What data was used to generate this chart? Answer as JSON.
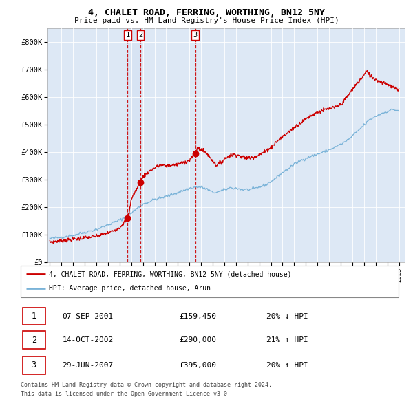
{
  "title": "4, CHALET ROAD, FERRING, WORTHING, BN12 5NY",
  "subtitle": "Price paid vs. HM Land Registry's House Price Index (HPI)",
  "legend_line1": "4, CHALET ROAD, FERRING, WORTHING, BN12 5NY (detached house)",
  "legend_line2": "HPI: Average price, detached house, Arun",
  "transactions": [
    {
      "num": 1,
      "date": "07-SEP-2001",
      "price": "£159,450",
      "change": "20% ↓ HPI",
      "year": 2001.69
    },
    {
      "num": 2,
      "date": "14-OCT-2002",
      "price": "£290,000",
      "change": "21% ↑ HPI",
      "year": 2002.79
    },
    {
      "num": 3,
      "date": "29-JUN-2007",
      "price": "£395,000",
      "change": "20% ↑ HPI",
      "year": 2007.49
    }
  ],
  "transaction_values": [
    159450,
    290000,
    395000
  ],
  "footer1": "Contains HM Land Registry data © Crown copyright and database right 2024.",
  "footer2": "This data is licensed under the Open Government Licence v3.0.",
  "hpi_color": "#7ab3d8",
  "price_color": "#cc0000",
  "marker_color": "#cc0000",
  "vline_color": "#cc0000",
  "bg_color": "#dde8f5",
  "grid_color": "#ffffff",
  "ylim": [
    0,
    850000
  ],
  "yticks": [
    0,
    100000,
    200000,
    300000,
    400000,
    500000,
    600000,
    700000,
    800000
  ],
  "ytick_labels": [
    "£0",
    "£100K",
    "£200K",
    "£300K",
    "£400K",
    "£500K",
    "£600K",
    "£700K",
    "£800K"
  ],
  "xlim_start": 1994.8,
  "xlim_end": 2025.5,
  "hpi_anchors": [
    [
      1995.0,
      85000
    ],
    [
      1996.0,
      90000
    ],
    [
      1997.0,
      97000
    ],
    [
      1998.0,
      108000
    ],
    [
      1999.0,
      118000
    ],
    [
      2000.0,
      135000
    ],
    [
      2001.0,
      152000
    ],
    [
      2001.5,
      162000
    ],
    [
      2002.0,
      178000
    ],
    [
      2002.5,
      195000
    ],
    [
      2003.0,
      210000
    ],
    [
      2003.5,
      218000
    ],
    [
      2004.0,
      228000
    ],
    [
      2004.5,
      232000
    ],
    [
      2005.0,
      238000
    ],
    [
      2005.5,
      245000
    ],
    [
      2006.0,
      252000
    ],
    [
      2006.5,
      260000
    ],
    [
      2007.0,
      268000
    ],
    [
      2007.5,
      272000
    ],
    [
      2008.0,
      272000
    ],
    [
      2008.5,
      265000
    ],
    [
      2009.0,
      252000
    ],
    [
      2009.5,
      255000
    ],
    [
      2010.0,
      262000
    ],
    [
      2010.5,
      270000
    ],
    [
      2011.0,
      268000
    ],
    [
      2011.5,
      263000
    ],
    [
      2012.0,
      263000
    ],
    [
      2012.5,
      265000
    ],
    [
      2013.0,
      272000
    ],
    [
      2013.5,
      280000
    ],
    [
      2014.0,
      292000
    ],
    [
      2014.5,
      308000
    ],
    [
      2015.0,
      325000
    ],
    [
      2015.5,
      340000
    ],
    [
      2016.0,
      355000
    ],
    [
      2016.5,
      368000
    ],
    [
      2017.0,
      378000
    ],
    [
      2017.5,
      385000
    ],
    [
      2018.0,
      392000
    ],
    [
      2018.5,
      400000
    ],
    [
      2019.0,
      408000
    ],
    [
      2019.5,
      418000
    ],
    [
      2020.0,
      428000
    ],
    [
      2020.5,
      440000
    ],
    [
      2021.0,
      458000
    ],
    [
      2021.5,
      478000
    ],
    [
      2022.0,
      498000
    ],
    [
      2022.5,
      518000
    ],
    [
      2023.0,
      530000
    ],
    [
      2023.5,
      540000
    ],
    [
      2024.0,
      548000
    ],
    [
      2024.5,
      555000
    ],
    [
      2025.0,
      550000
    ]
  ],
  "price_anchors": [
    [
      1995.0,
      72000
    ],
    [
      1996.0,
      78000
    ],
    [
      1997.0,
      82000
    ],
    [
      1998.0,
      88000
    ],
    [
      1999.0,
      93000
    ],
    [
      2000.0,
      105000
    ],
    [
      2001.0,
      125000
    ],
    [
      2001.69,
      159450
    ],
    [
      2001.8,
      175000
    ],
    [
      2001.9,
      200000
    ],
    [
      2002.0,
      230000
    ],
    [
      2002.4,
      260000
    ],
    [
      2002.79,
      290000
    ],
    [
      2003.0,
      310000
    ],
    [
      2003.5,
      328000
    ],
    [
      2004.0,
      342000
    ],
    [
      2004.5,
      352000
    ],
    [
      2005.0,
      350000
    ],
    [
      2005.5,
      352000
    ],
    [
      2006.0,
      356000
    ],
    [
      2006.5,
      362000
    ],
    [
      2007.0,
      370000
    ],
    [
      2007.49,
      395000
    ],
    [
      2007.7,
      415000
    ],
    [
      2008.0,
      408000
    ],
    [
      2008.5,
      395000
    ],
    [
      2009.0,
      368000
    ],
    [
      2009.3,
      352000
    ],
    [
      2009.7,
      362000
    ],
    [
      2010.0,
      375000
    ],
    [
      2010.5,
      388000
    ],
    [
      2011.0,
      392000
    ],
    [
      2011.5,
      382000
    ],
    [
      2012.0,
      378000
    ],
    [
      2012.5,
      382000
    ],
    [
      2013.0,
      390000
    ],
    [
      2013.5,
      402000
    ],
    [
      2014.0,
      418000
    ],
    [
      2014.5,
      438000
    ],
    [
      2015.0,
      455000
    ],
    [
      2015.5,
      472000
    ],
    [
      2016.0,
      490000
    ],
    [
      2016.5,
      505000
    ],
    [
      2017.0,
      520000
    ],
    [
      2017.5,
      535000
    ],
    [
      2018.0,
      545000
    ],
    [
      2018.5,
      552000
    ],
    [
      2019.0,
      558000
    ],
    [
      2019.5,
      562000
    ],
    [
      2020.0,
      572000
    ],
    [
      2020.5,
      598000
    ],
    [
      2021.0,
      628000
    ],
    [
      2021.5,
      655000
    ],
    [
      2022.0,
      680000
    ],
    [
      2022.2,
      695000
    ],
    [
      2022.4,
      685000
    ],
    [
      2022.7,
      672000
    ],
    [
      2023.0,
      665000
    ],
    [
      2023.3,
      658000
    ],
    [
      2023.6,
      655000
    ],
    [
      2024.0,
      648000
    ],
    [
      2024.5,
      635000
    ],
    [
      2025.0,
      625000
    ]
  ]
}
